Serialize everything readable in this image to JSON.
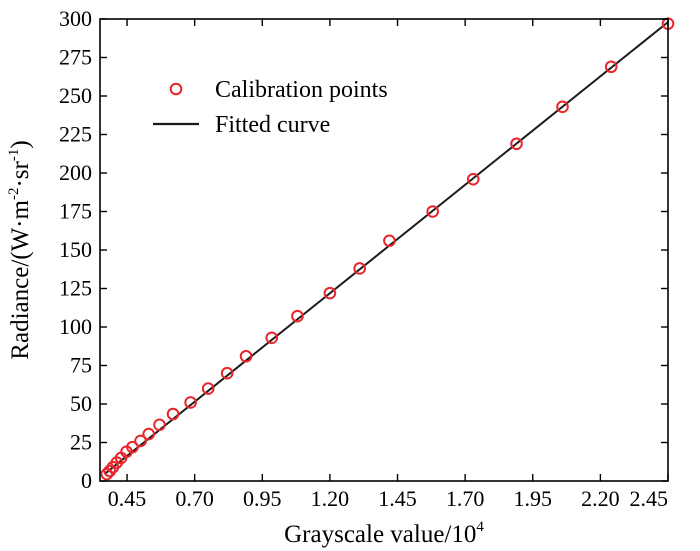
{
  "chart_data": {
    "type": "scatter",
    "title": "",
    "xlabel": "Grayscale value/10",
    "xlabel_sup": "4",
    "ylabel": "Radiance/(W·m",
    "ylabel_sup1": "-2",
    "ylabel_mid": "·sr",
    "ylabel_sup2": "-1",
    "ylabel_end": ")",
    "xlim": [
      0.35,
      2.45
    ],
    "ylim": [
      0,
      300
    ],
    "xticks": [
      "0.45",
      "0.70",
      "0.95",
      "1.20",
      "1.45",
      "1.70",
      "1.95",
      "2.20",
      "2.45"
    ],
    "yticks": [
      "0",
      "25",
      "50",
      "75",
      "100",
      "125",
      "150",
      "175",
      "200",
      "225",
      "250",
      "275",
      "300"
    ],
    "grid": false,
    "legend_position": "top-left",
    "colors": {
      "points": "#e8262b",
      "line": "#1a1a1a",
      "axis": "#000000"
    },
    "series": [
      {
        "name": "Calibration points",
        "kind": "scatter",
        "x": [
          0.375,
          0.386,
          0.398,
          0.412,
          0.428,
          0.448,
          0.47,
          0.5,
          0.53,
          0.57,
          0.62,
          0.685,
          0.75,
          0.82,
          0.89,
          0.985,
          1.08,
          1.2,
          1.31,
          1.42,
          1.58,
          1.73,
          1.89,
          2.06,
          2.24,
          2.45
        ],
        "y": [
          4.5,
          6.5,
          9,
          12,
          15,
          19,
          22,
          26,
          30.5,
          36.5,
          43.5,
          51,
          60,
          70,
          81,
          93,
          107,
          122,
          138,
          156,
          175,
          196,
          219,
          243,
          269,
          297
        ]
      },
      {
        "name": "Fitted curve",
        "kind": "line",
        "x": [
          0.37,
          2.45
        ],
        "y": [
          5,
          298
        ]
      }
    ]
  }
}
